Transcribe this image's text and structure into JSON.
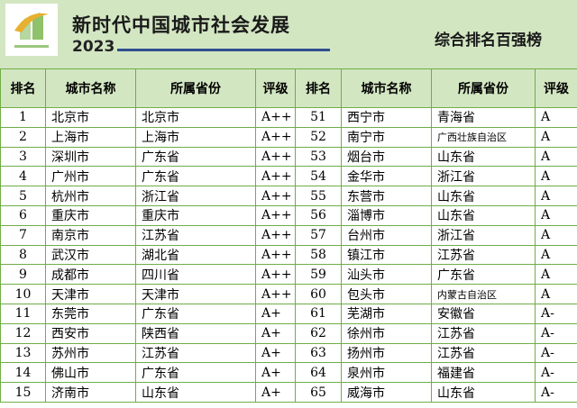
{
  "header": {
    "title": "新时代中国城市社会发展",
    "year": "2023",
    "subtitle": "综合排名百强榜"
  },
  "table": {
    "columns": [
      "排名",
      "城市名称",
      "所属省份",
      "评级"
    ],
    "left_rows": [
      [
        1,
        "北京市",
        "北京市",
        "A++"
      ],
      [
        2,
        "上海市",
        "上海市",
        "A++"
      ],
      [
        3,
        "深圳市",
        "广东省",
        "A++"
      ],
      [
        4,
        "广州市",
        "广东省",
        "A++"
      ],
      [
        5,
        "杭州市",
        "浙江省",
        "A++"
      ],
      [
        6,
        "重庆市",
        "重庆市",
        "A++"
      ],
      [
        7,
        "南京市",
        "江苏省",
        "A++"
      ],
      [
        8,
        "武汉市",
        "湖北省",
        "A++"
      ],
      [
        9,
        "成都市",
        "四川省",
        "A++"
      ],
      [
        10,
        "天津市",
        "天津市",
        "A++"
      ],
      [
        11,
        "东莞市",
        "广东省",
        "A+"
      ],
      [
        12,
        "西安市",
        "陕西省",
        "A+"
      ],
      [
        13,
        "苏州市",
        "江苏省",
        "A+"
      ],
      [
        14,
        "佛山市",
        "广东省",
        "A+"
      ],
      [
        15,
        "济南市",
        "山东省",
        "A+"
      ]
    ],
    "right_rows": [
      [
        51,
        "西宁市",
        "青海省",
        "A"
      ],
      [
        52,
        "南宁市",
        "广西壮族自治区",
        "A"
      ],
      [
        53,
        "烟台市",
        "山东省",
        "A"
      ],
      [
        54,
        "金华市",
        "浙江省",
        "A"
      ],
      [
        55,
        "东营市",
        "山东省",
        "A"
      ],
      [
        56,
        "淄博市",
        "山东省",
        "A"
      ],
      [
        57,
        "台州市",
        "浙江省",
        "A"
      ],
      [
        58,
        "镇江市",
        "江苏省",
        "A"
      ],
      [
        59,
        "汕头市",
        "广东省",
        "A"
      ],
      [
        60,
        "包头市",
        "内蒙古自治区",
        "A"
      ],
      [
        61,
        "芜湖市",
        "安徽省",
        "A-"
      ],
      [
        62,
        "徐州市",
        "江苏省",
        "A-"
      ],
      [
        63,
        "扬州市",
        "江苏省",
        "A-"
      ],
      [
        64,
        "泉州市",
        "福建省",
        "A-"
      ],
      [
        65,
        "威海市",
        "山东省",
        "A-"
      ]
    ]
  }
}
